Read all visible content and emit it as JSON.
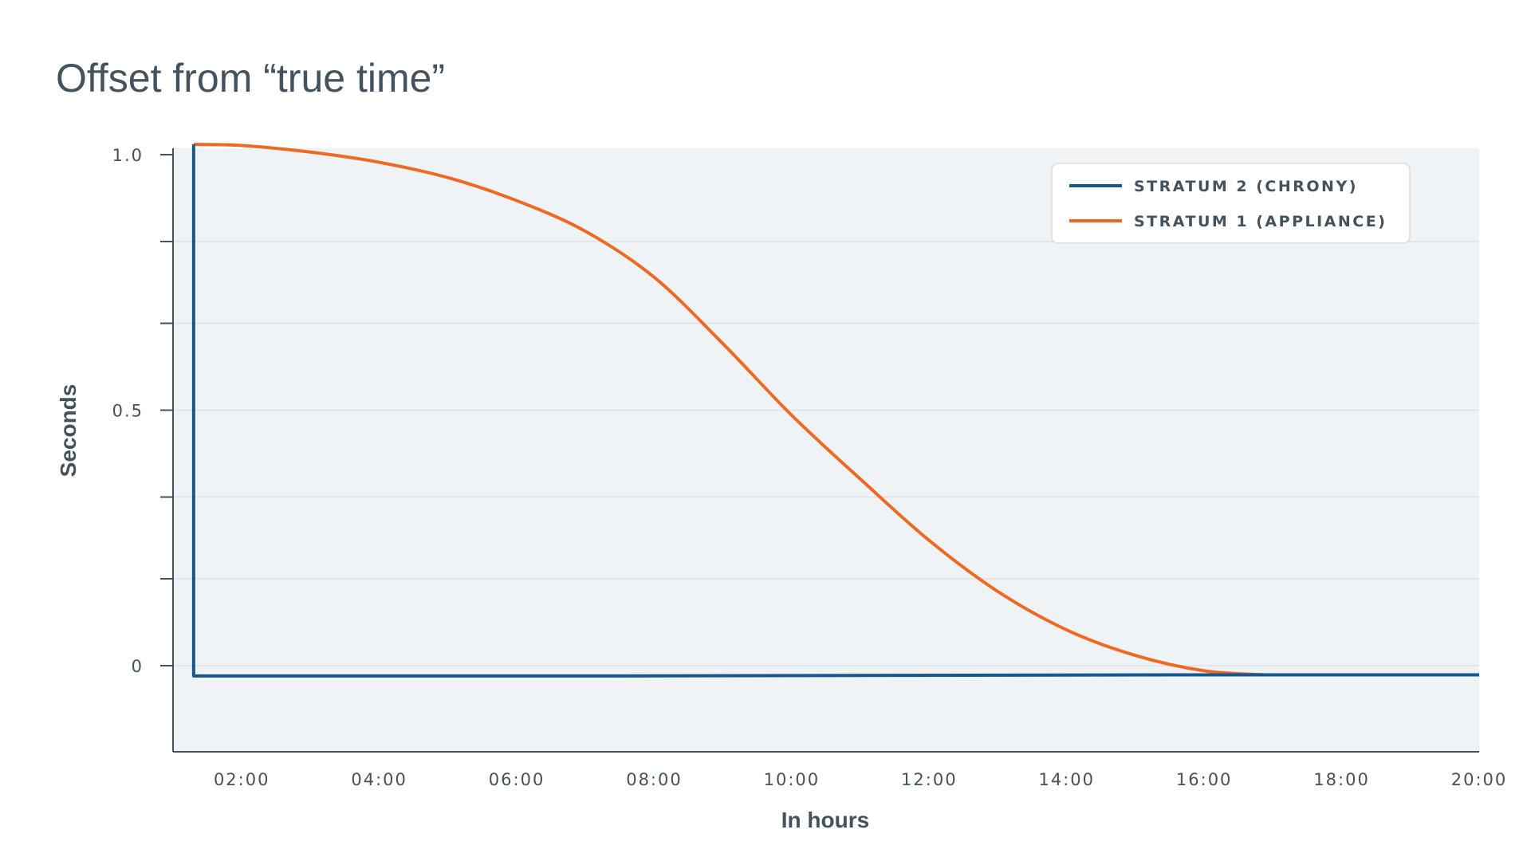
{
  "chart_data": {
    "type": "line",
    "title": "Offset from “true time”",
    "xlabel": "In hours",
    "ylabel": "Seconds",
    "x_ticks": [
      "02:00",
      "04:00",
      "06:00",
      "08:00",
      "10:00",
      "12:00",
      "14:00",
      "16:00",
      "18:00",
      "20:00"
    ],
    "x_range": [
      "01:00",
      "20:00"
    ],
    "y_ticks": [
      {
        "value": 1.0,
        "label": "1.0"
      },
      {
        "value": 0.5,
        "label": "0.5"
      },
      {
        "value": 0,
        "label": "0"
      }
    ],
    "y_minor_ticks": [
      0.83,
      0.67,
      0.33,
      0.17
    ],
    "ylim": [
      -0.17,
      1.02
    ],
    "grid": true,
    "legend_position": "top-right",
    "series": [
      {
        "name": "STRATUM 2 (CHRONY)",
        "color": "#16578f",
        "x": [
          "01:18",
          "01:18",
          "03:30",
          "07:30",
          "11:30",
          "15:30",
          "19:30",
          "20:00"
        ],
        "y": [
          1.02,
          -0.02,
          -0.02,
          -0.02,
          -0.019,
          -0.018,
          -0.018,
          -0.018
        ]
      },
      {
        "name": "STRATUM 1 (APPLIANCE)",
        "color": "#ee6a24",
        "x": [
          "01:18",
          "02:00",
          "03:00",
          "04:00",
          "05:00",
          "06:00",
          "07:00",
          "08:00",
          "09:00",
          "10:00",
          "11:00",
          "12:00",
          "13:00",
          "14:00",
          "15:00",
          "16:00",
          "16:54"
        ],
        "y": [
          1.02,
          1.018,
          1.005,
          0.985,
          0.955,
          0.91,
          0.85,
          0.76,
          0.63,
          0.49,
          0.365,
          0.245,
          0.145,
          0.07,
          0.02,
          -0.01,
          -0.018
        ]
      }
    ]
  }
}
